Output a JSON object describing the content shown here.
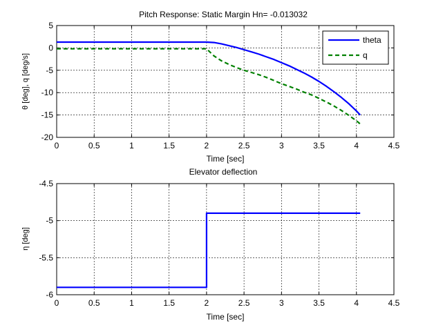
{
  "figure": {
    "background": "#ffffff"
  },
  "chart_data": [
    {
      "type": "line",
      "title": "Pitch Response: Static Margin Hn= -0.013032",
      "xlabel": "Time [sec]",
      "ylabel": "θ [deg], q [deg/s]",
      "xlim": [
        0,
        4.5
      ],
      "ylim": [
        -20,
        5
      ],
      "xticks": [
        "0",
        "0.5",
        "1",
        "1.5",
        "2",
        "2.5",
        "3",
        "3.5",
        "4",
        "4.5"
      ],
      "yticks": [
        "-20",
        "-15",
        "-10",
        "-5",
        "0",
        "5"
      ],
      "grid": true,
      "legend_position": "top-right",
      "series": [
        {
          "name": "theta",
          "color": "#0000ff",
          "style": "solid",
          "x": [
            0,
            2.0,
            2.1,
            2.2,
            2.3,
            2.4,
            2.5,
            2.6,
            2.7,
            2.8,
            2.9,
            3.0,
            3.1,
            3.2,
            3.3,
            3.4,
            3.5,
            3.6,
            3.7,
            3.8,
            3.9,
            4.0,
            4.05
          ],
          "y": [
            1.3,
            1.3,
            1.2,
            0.9,
            0.5,
            0.1,
            -0.4,
            -0.9,
            -1.4,
            -2.0,
            -2.6,
            -3.3,
            -4.0,
            -4.8,
            -5.6,
            -6.5,
            -7.5,
            -8.6,
            -9.8,
            -11.1,
            -12.5,
            -14.1,
            -15.0
          ]
        },
        {
          "name": "q",
          "color": "#008000",
          "style": "dashed",
          "x": [
            0,
            2.0,
            2.1,
            2.2,
            2.3,
            2.4,
            2.5,
            2.6,
            2.7,
            2.8,
            2.9,
            3.0,
            3.1,
            3.2,
            3.3,
            3.4,
            3.5,
            3.6,
            3.7,
            3.8,
            3.9,
            4.0,
            4.05
          ],
          "y": [
            -0.2,
            -0.2,
            -1.8,
            -2.9,
            -3.7,
            -4.4,
            -5.0,
            -5.5,
            -6.0,
            -6.6,
            -7.3,
            -8.0,
            -8.6,
            -9.2,
            -9.9,
            -10.5,
            -11.3,
            -12.1,
            -13.0,
            -14.0,
            -15.1,
            -16.3,
            -17.0
          ]
        }
      ]
    },
    {
      "type": "line",
      "title": "Elevator deflection",
      "xlabel": "Time [sec]",
      "ylabel": "η [deg]",
      "xlim": [
        0,
        4.5
      ],
      "ylim": [
        -6,
        -4.5
      ],
      "xticks": [
        "0",
        "0.5",
        "1",
        "1.5",
        "2",
        "2.5",
        "3",
        "3.5",
        "4",
        "4.5"
      ],
      "yticks": [
        "-6",
        "-5.5",
        "-5",
        "-4.5"
      ],
      "grid": true,
      "series": [
        {
          "color": "#0000ff",
          "style": "solid",
          "x": [
            0,
            2.0,
            2.0,
            4.05
          ],
          "y": [
            -5.9,
            -5.9,
            -4.9,
            -4.9
          ]
        }
      ]
    }
  ]
}
